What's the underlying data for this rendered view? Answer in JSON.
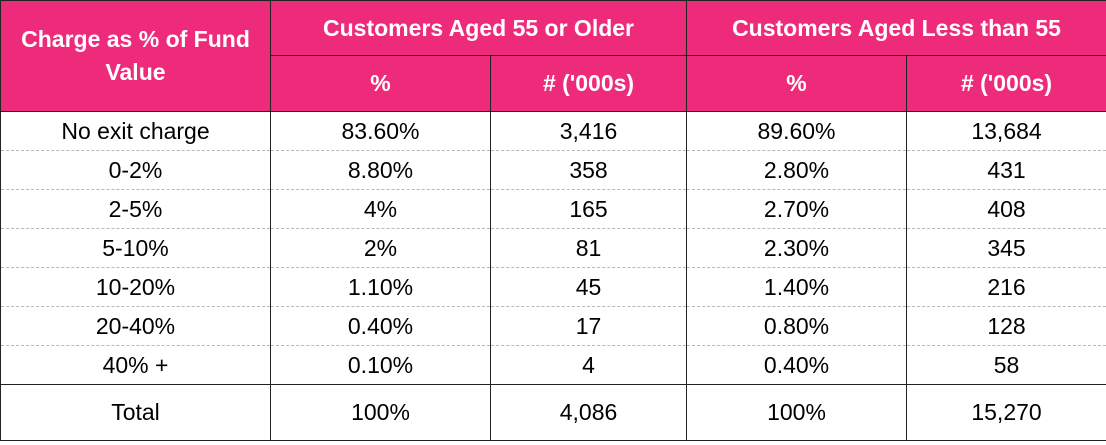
{
  "chart_data": {
    "type": "table",
    "header": {
      "corner": "Charge as % of Fund Value",
      "groups": [
        "Customers Aged 55 or Older",
        "Customers Aged Less than 55"
      ],
      "subheaders": [
        "%",
        "# ('000s)",
        "%",
        "# ('000s)"
      ]
    },
    "rows": [
      [
        "No exit charge",
        "83.60%",
        "3,416",
        "89.60%",
        "13,684"
      ],
      [
        "0-2%",
        "8.80%",
        "358",
        "2.80%",
        "431"
      ],
      [
        "2-5%",
        "4%",
        "165",
        "2.70%",
        "408"
      ],
      [
        "5-10%",
        "2%",
        "81",
        "2.30%",
        "345"
      ],
      [
        "10-20%",
        "1.10%",
        "45",
        "1.40%",
        "216"
      ],
      [
        "20-40%",
        "0.40%",
        "17",
        "0.80%",
        "128"
      ],
      [
        "40% +",
        "0.10%",
        "4",
        "0.40%",
        "58"
      ]
    ],
    "total": [
      "Total",
      "100%",
      "4,086",
      "100%",
      "15,270"
    ]
  },
  "colors": {
    "header_bg": "#ee2b7a",
    "header_text": "#ffffff",
    "border": "#222222",
    "row_divider": "#b9b9b9"
  }
}
